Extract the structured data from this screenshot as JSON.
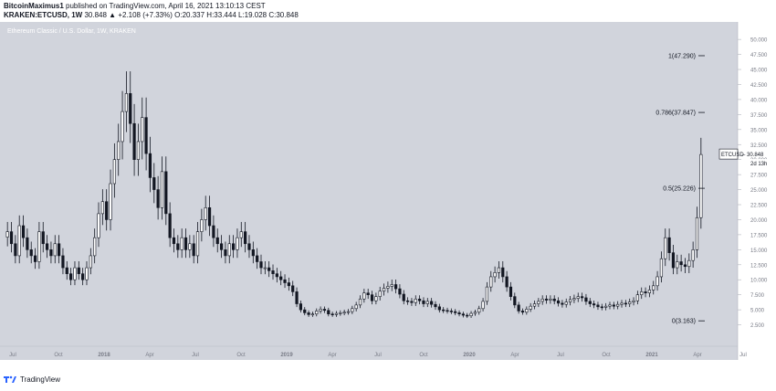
{
  "header": {
    "author": "BitcoinMaximus1",
    "published": "published on TradingView.com, April 16, 2021 13:10:13 CEST",
    "symbol_line": "KRAKEN:ETCUSD, 1W",
    "last": "30.848",
    "change": "▲ +2.108 (+7.33%)",
    "ohlc": "O:20.337 H:33.444 L:19.028 C:30.848"
  },
  "footer": {
    "brand": "TradingView"
  },
  "colors": {
    "background": "#d1d4dc",
    "candle": "#131722",
    "fib_line": "#131722",
    "axis_text": "#131722"
  },
  "chart_data": {
    "type": "candlestick",
    "title": "Ethereum Classic / U.S. Dollar, 1W, KRAKEN",
    "x_ticks": [
      "Jul",
      "Oct",
      "2018",
      "Apr",
      "Jul",
      "Oct",
      "2019",
      "Apr",
      "Jul",
      "Oct",
      "2020",
      "Apr",
      "Jul",
      "Oct",
      "2021",
      "Apr",
      "Jul"
    ],
    "y_ticks": [
      "50.000",
      "47.500",
      "45.000",
      "42.500",
      "40.000",
      "37.500",
      "35.000",
      "32.500",
      "30.000",
      "27.500",
      "25.000",
      "22.500",
      "20.000",
      "17.500",
      "15.000",
      "12.500",
      "10.000",
      "7.500",
      "5.000",
      "2.500"
    ],
    "ylim": [
      0,
      52
    ],
    "fib_levels": [
      {
        "label": "1(47.290)",
        "value": 47.29
      },
      {
        "label": "0.786(37.847)",
        "value": 37.847
      },
      {
        "label": "0.5(25.226)",
        "value": 25.226
      },
      {
        "label": "0(3.163)",
        "value": 3.163
      }
    ],
    "price_label": {
      "symbol": "ETCUSD",
      "value": "30.848",
      "countdown": "2d 13h",
      "price": 30.848
    },
    "weekly_closes": [
      18,
      16,
      14,
      19,
      17,
      15,
      14,
      13,
      18,
      16,
      15,
      14,
      16,
      14,
      12,
      11,
      10,
      12,
      11,
      10,
      12,
      14,
      17,
      21,
      23,
      20,
      26,
      30,
      33,
      38,
      41,
      36,
      30,
      33,
      37,
      31,
      27,
      25,
      22,
      28,
      21,
      17,
      16,
      15,
      17,
      15,
      16,
      14,
      18,
      20,
      22,
      19,
      17,
      16,
      15,
      14,
      16,
      15,
      17,
      18,
      16,
      15,
      14,
      13,
      12,
      12,
      11.5,
      11,
      10.5,
      10,
      9.5,
      9,
      8,
      6,
      5,
      4.5,
      4.2,
      4.3,
      4.8,
      5.1,
      4.9,
      4.3,
      4.2,
      4.4,
      4.5,
      4.6,
      4.7,
      5.2,
      5.8,
      6.8,
      7.8,
      7.5,
      6.5,
      7.2,
      8.1,
      8.6,
      8.9,
      9.2,
      8.5,
      7.6,
      6.5,
      6.4,
      6.2,
      6.8,
      6.5,
      6.0,
      6.4,
      5.9,
      5.5,
      5.0,
      4.9,
      4.8,
      4.7,
      4.5,
      4.3,
      4.1,
      4.0,
      4.4,
      4.6,
      5.2,
      6.4,
      8.8,
      10.5,
      11.2,
      12.0,
      10.5,
      8.8,
      7.2,
      5.8,
      4.8,
      4.6,
      5.1,
      5.6,
      6.0,
      6.4,
      6.8,
      6.6,
      6.8,
      6.5,
      6.1,
      5.9,
      6.3,
      6.7,
      6.9,
      7.2,
      7.0,
      6.4,
      6.0,
      5.8,
      5.5,
      5.4,
      5.6,
      5.8,
      5.6,
      5.9,
      6.1,
      6.0,
      6.3,
      6.5,
      7.5,
      8.0,
      7.8,
      8.3,
      9.0,
      10.5,
      13.5,
      17.0,
      14.5,
      12.0,
      13.0,
      12.5,
      12.2,
      13.2,
      15.0,
      20.337,
      30.848
    ]
  }
}
